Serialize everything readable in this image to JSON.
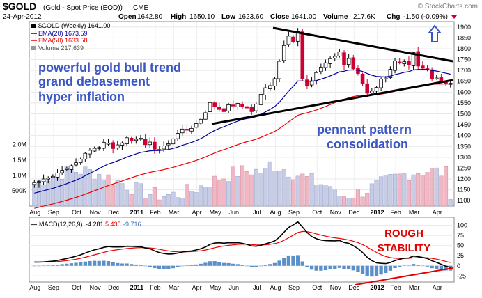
{
  "header": {
    "symbol": "$GOLD",
    "description": "(Gold - Spot Price (EOD))",
    "exchange": "CME",
    "brand": "© StockCharts.com",
    "date": "24-Apr-2012",
    "open_label": "Open",
    "open": "1642.80",
    "high_label": "High",
    "high": "1650.10",
    "low_label": "Low",
    "low": "1623.60",
    "close_label": "Close",
    "close": "1641.00",
    "volume_label": "Volume",
    "volume": "217.6K",
    "chg_label": "Chg",
    "chg": "-1.50 (-0.09%)"
  },
  "legend": {
    "price_line": "$GOLD (Weekly) 1641.00",
    "ema20": "EMA(20) 1673.59",
    "ema50": "EMA(50) 1633.58",
    "volume": "Volume 217,639"
  },
  "annotations": {
    "left_text": [
      "powerful gold bull trend",
      "grand debasement",
      "hyper inflation"
    ],
    "pattern_text": [
      "pennant pattern",
      "consolidation"
    ],
    "macd_text": [
      "ROUGH",
      "STABILITY"
    ]
  },
  "macd_legend": {
    "label": "MACD(12,26,9)",
    "macd": "-4.281",
    "signal": "5.435",
    "hist": "-9.716"
  },
  "colors": {
    "up": "#000000",
    "down": "#cc0033",
    "ema20": "#000099",
    "ema50": "#ee0000",
    "trendline": "#000000",
    "annotation_blue": "#3a55c4",
    "annotation_red": "#e00000",
    "volume_up": "#c8cde6",
    "volume_down": "#f0b8c4",
    "hist": "#5b8fc7",
    "macd_line": "#000000",
    "signal_line": "#ee0000"
  },
  "chart_data": [
    {
      "type": "candlestick",
      "title": "$GOLD (Weekly)",
      "x_labels": [
        "Aug",
        "Sep",
        "Oct",
        "Nov",
        "Dec",
        "2011",
        "Feb",
        "Mar",
        "Apr",
        "May",
        "Jun",
        "Jul",
        "Aug",
        "Sep",
        "Oct",
        "Nov",
        "Dec",
        "2012",
        "Feb",
        "Mar",
        "Apr"
      ],
      "ylim": [
        1075,
        1925
      ],
      "y_ticks": [
        1100,
        1150,
        1200,
        1250,
        1300,
        1350,
        1400,
        1450,
        1500,
        1550,
        1600,
        1650,
        1700,
        1750,
        1800,
        1850,
        1900
      ],
      "volume_ticks": [
        "500K",
        "1.0M",
        "1.5M",
        "2.0M"
      ],
      "volume_max": 2400000,
      "weeks": 91,
      "close": [
        1183,
        1188,
        1200,
        1205,
        1212,
        1227,
        1240,
        1248,
        1261,
        1275,
        1292,
        1318,
        1332,
        1341,
        1345,
        1369,
        1365,
        1340,
        1357,
        1366,
        1390,
        1378,
        1383,
        1388,
        1358,
        1370,
        1337,
        1335,
        1352,
        1362,
        1385,
        1410,
        1430,
        1425,
        1433,
        1455,
        1475,
        1505,
        1552,
        1535,
        1520,
        1510,
        1542,
        1536,
        1548,
        1535,
        1527,
        1510,
        1545,
        1590,
        1620,
        1630,
        1662,
        1742,
        1815,
        1858,
        1832,
        1880,
        1660,
        1630,
        1652,
        1690,
        1715,
        1735,
        1754,
        1765,
        1785,
        1725,
        1755,
        1708,
        1686,
        1640,
        1595,
        1605,
        1622,
        1660,
        1665,
        1705,
        1744,
        1735,
        1740,
        1725,
        1782,
        1720,
        1710,
        1702,
        1660,
        1665,
        1648,
        1640,
        1641
      ],
      "ema20": 1673.59,
      "ema50": 1633.58,
      "volume_last": 217639
    },
    {
      "type": "macd",
      "title": "MACD(12,26,9)",
      "ylim": [
        -40,
        120
      ],
      "y_ticks": [
        -25,
        0,
        25,
        50,
        75,
        100
      ],
      "x_labels": [
        "Aug",
        "Sep",
        "Oct",
        "Nov",
        "Dec",
        "2011",
        "Feb",
        "Mar",
        "Apr",
        "May",
        "Jun",
        "Jul",
        "Aug",
        "Sep",
        "Oct",
        "Nov",
        "Dec",
        "2012",
        "Feb",
        "Mar",
        "Apr"
      ],
      "macd_last": -4.281,
      "signal_last": 5.435,
      "hist_last": -9.716
    }
  ]
}
